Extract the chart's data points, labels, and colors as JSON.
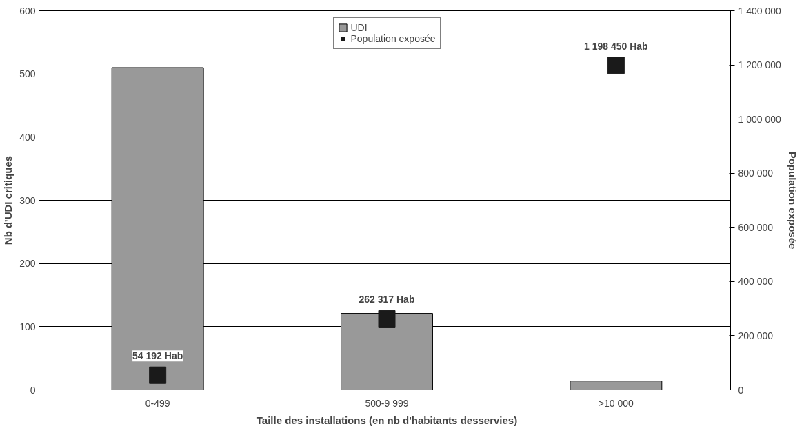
{
  "chart_data": {
    "type": "bar",
    "xlabel": "Taille des installations (en nb d'habitants desservies)",
    "ylabel": "Nb d'UDI critiques",
    "y2label": "Population exposée",
    "categories": [
      "0-499",
      "500-9 999",
      ">10 000"
    ],
    "series": [
      {
        "name": "UDI",
        "color": "#999999",
        "values": [
          510,
          121,
          14
        ]
      },
      {
        "name": "Population exposée",
        "type": "scatter",
        "axis": "y2",
        "color": "#1a1a1a",
        "marker": "square",
        "values": [
          54192,
          262317,
          1198450
        ],
        "value_labels": [
          "54 192 Hab",
          "262 317 Hab",
          "1 198 450 Hab"
        ]
      }
    ],
    "ylim": [
      0,
      600
    ],
    "yticks": [
      0,
      100,
      200,
      300,
      400,
      500,
      600
    ],
    "y2lim": [
      0,
      1400000
    ],
    "y2ticks": [
      0,
      {
        "value": 200000,
        "label": "200 000"
      },
      {
        "value": 400000,
        "label": "400 000"
      },
      {
        "value": 600000,
        "label": "600 000"
      },
      {
        "value": 800000,
        "label": "800 000"
      },
      {
        "value": 1000000,
        "label": "1 000 000"
      },
      {
        "value": 1200000,
        "label": "1 200 000"
      },
      {
        "value": 1400000,
        "label": "1 400 000"
      }
    ],
    "grid": "y",
    "legend": "top"
  }
}
